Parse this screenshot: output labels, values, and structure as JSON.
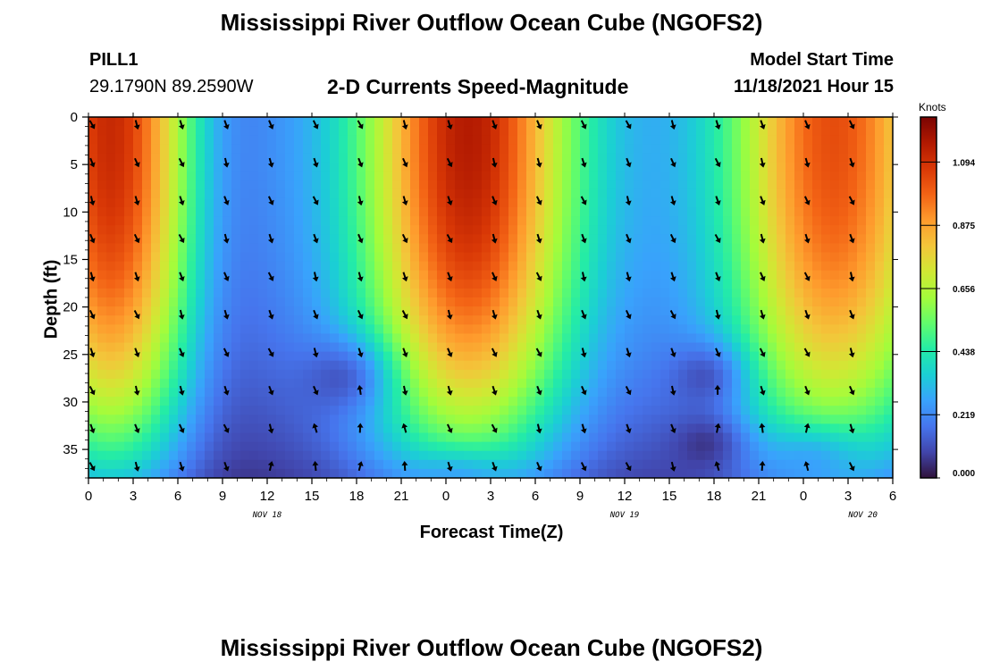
{
  "title": "Mississippi River Outflow Ocean Cube (NGOFS2)",
  "title_repeat": "Mississippi River Outflow Ocean Cube (NGOFS2)",
  "station": {
    "name": "PILL1",
    "coords": "29.1790N  89.2590W"
  },
  "model_start": {
    "label": "Model Start Time",
    "value": "11/18/2021 Hour 15"
  },
  "chart_data": {
    "type": "heatmap",
    "title": "2-D Currents Speed-Magnitude",
    "xlabel": "Forecast Time(Z)",
    "ylabel": "Depth (ft)",
    "x_ticks": [
      "0",
      "3",
      "6",
      "9",
      "12",
      "15",
      "18",
      "21",
      "0",
      "3",
      "6",
      "9",
      "12",
      "15",
      "18",
      "21",
      "0",
      "3",
      "6"
    ],
    "x_date_labels": [
      "NOV 18",
      "NOV 19",
      "NOV 20"
    ],
    "x_range_hours": [
      0,
      54
    ],
    "y_ticks": [
      "0",
      "5",
      "10",
      "15",
      "20",
      "25",
      "30",
      "35"
    ],
    "y_range_ft": [
      0,
      38
    ],
    "y_inverted": true,
    "colorbar": {
      "units": "Knots",
      "ticks": [
        "1.094",
        "0.875",
        "0.656",
        "0.438",
        "0.219",
        "0.000"
      ],
      "range": [
        0.0,
        1.25
      ],
      "colors": [
        "#30123b",
        "#4145ab",
        "#4675ed",
        "#39a2fc",
        "#1bcfd4",
        "#24eca6",
        "#61fc6c",
        "#a4fc3b",
        "#d1e834",
        "#f3c63a",
        "#fe9b2d",
        "#f36315",
        "#d93806",
        "#b11901",
        "#7a0402"
      ]
    },
    "arrow_depths_ft": [
      0.4,
      4.4,
      8.4,
      12.4,
      16.4,
      20.4,
      24.4,
      28.4,
      32.4,
      36.4
    ],
    "arrow_hours": [
      0,
      3,
      6,
      9,
      12,
      15,
      18,
      21,
      24,
      27,
      30,
      33,
      36,
      39,
      42,
      45,
      48,
      51
    ]
  }
}
